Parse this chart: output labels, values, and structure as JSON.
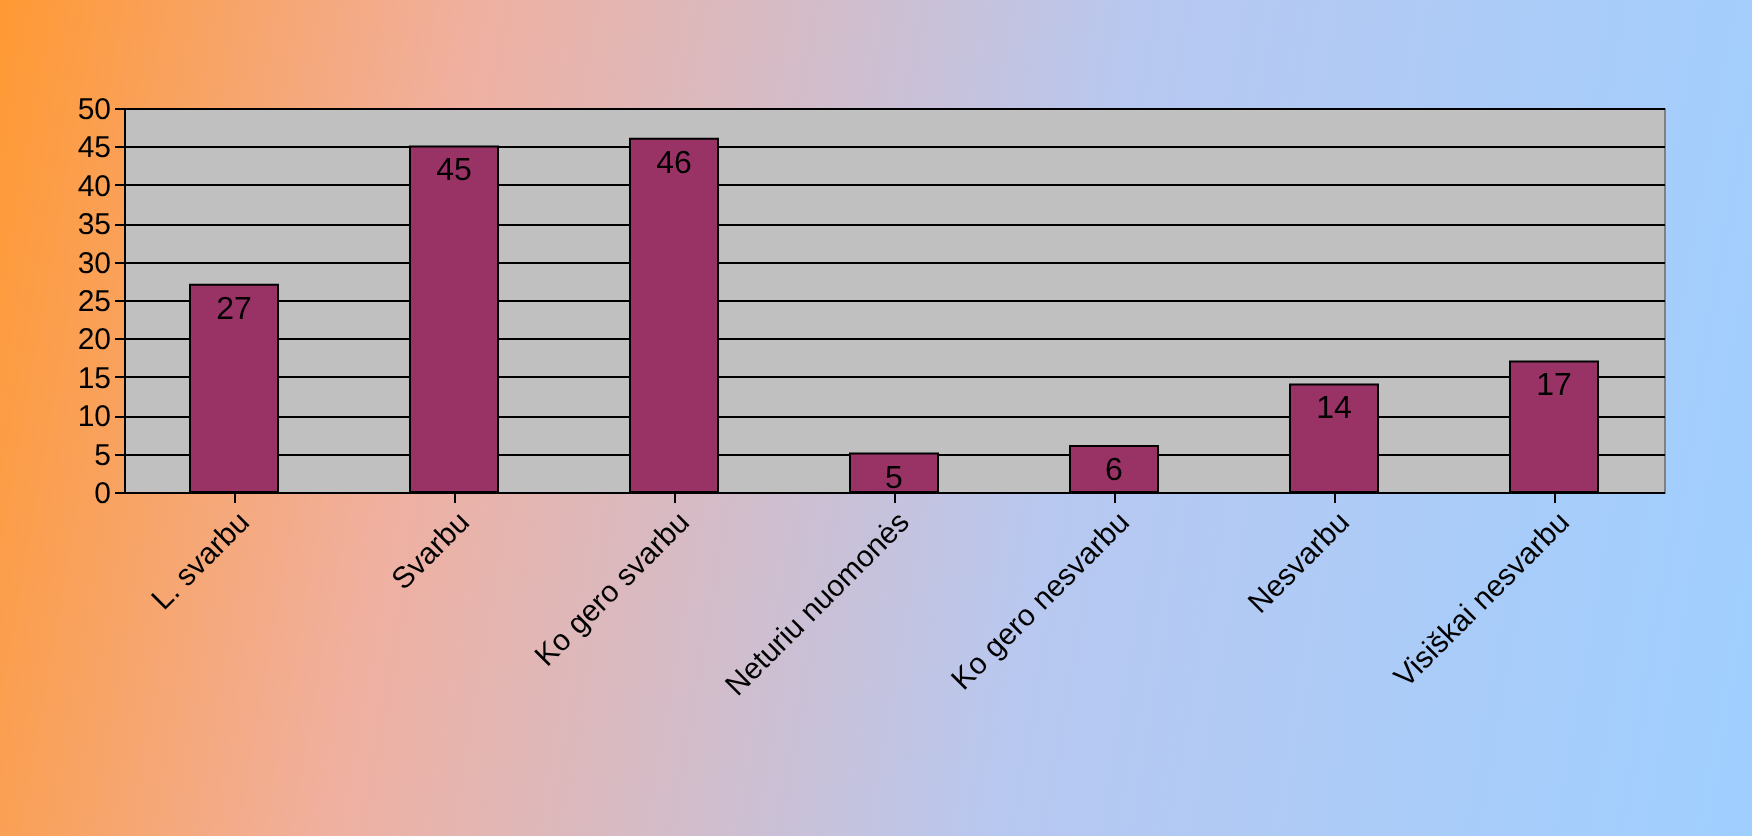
{
  "chart_data": {
    "type": "bar",
    "categories": [
      "L. svarbu",
      "Svarbu",
      "Ko gero svarbu",
      "Neturiu nuomonės",
      "Ko gero nesvarbu",
      "Nesvarbu",
      "Visiškai nesvarbu"
    ],
    "values": [
      27,
      45,
      46,
      5,
      6,
      14,
      17
    ],
    "color": "#993366",
    "data_labels": true,
    "ylim": [
      0,
      50
    ],
    "yticks": [
      0,
      5,
      10,
      15,
      20,
      25,
      30,
      35,
      40,
      45,
      50
    ],
    "grid": "y"
  }
}
